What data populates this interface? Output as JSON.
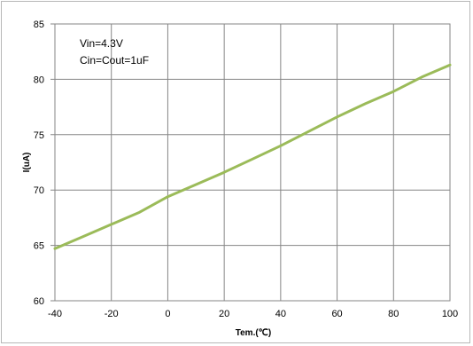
{
  "chart_data": {
    "type": "line",
    "title": "",
    "xlabel": "Tem.(℃)",
    "ylabel": "I(uA)",
    "xlim": [
      -40,
      100
    ],
    "ylim": [
      60,
      85
    ],
    "x_ticks": [
      -40,
      -20,
      0,
      20,
      40,
      60,
      80,
      100
    ],
    "y_ticks": [
      60,
      65,
      70,
      75,
      80,
      85
    ],
    "grid": true,
    "legend": "none",
    "annotations": [
      "Vin=4.3V",
      "Cin=Cout=1uF"
    ],
    "series": [
      {
        "color": "#9bbb59",
        "x": [
          -40,
          -30,
          -20,
          -10,
          0,
          10,
          20,
          30,
          40,
          50,
          60,
          70,
          80,
          90,
          100
        ],
        "y": [
          64.7,
          65.8,
          66.9,
          68.0,
          69.4,
          70.5,
          71.6,
          72.8,
          74.0,
          75.3,
          76.6,
          77.8,
          78.9,
          80.2,
          81.3
        ]
      }
    ]
  }
}
